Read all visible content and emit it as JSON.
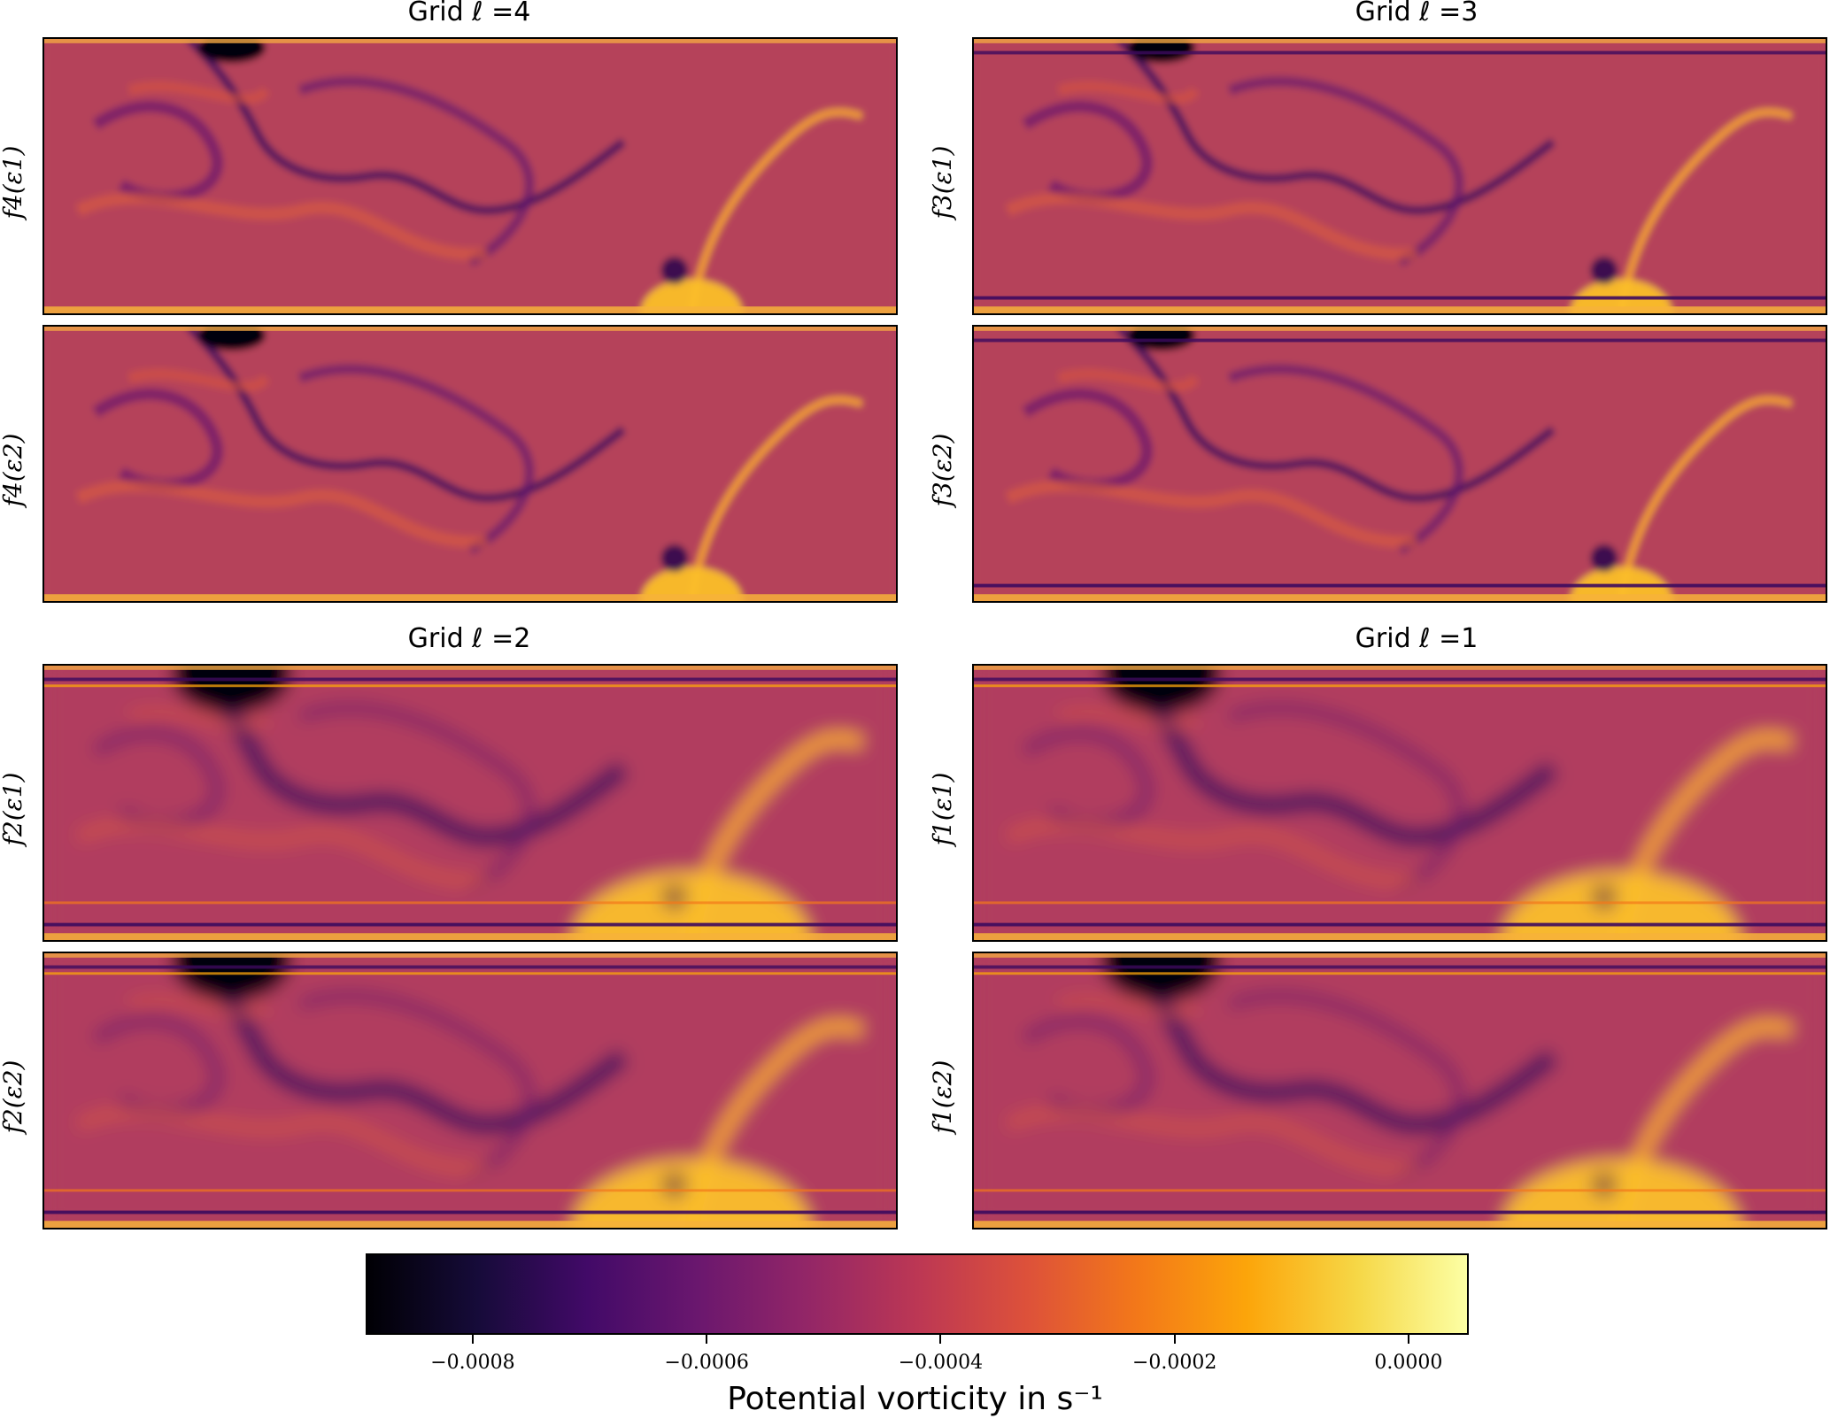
{
  "chart_data": {
    "type": "heatmap",
    "colormap": "inferno",
    "grids": [
      {
        "title": "Grid ℓ =4",
        "rows": [
          {
            "ylabel": "f4(ε1)"
          },
          {
            "ylabel": "f4(ε2)"
          }
        ]
      },
      {
        "title": "Grid ℓ =3",
        "rows": [
          {
            "ylabel": "f3(ε1)"
          },
          {
            "ylabel": "f3(ε2)"
          }
        ]
      },
      {
        "title": "Grid ℓ =2",
        "rows": [
          {
            "ylabel": "f2(ε1)"
          },
          {
            "ylabel": "f2(ε2)"
          }
        ]
      },
      {
        "title": "Grid ℓ =1",
        "rows": [
          {
            "ylabel": "f1(ε1)"
          },
          {
            "ylabel": "f1(ε2)"
          }
        ]
      }
    ],
    "colorbar": {
      "label": "Potential vorticity in s⁻¹",
      "range": [
        -0.00089,
        5e-05
      ],
      "ticks": [
        -0.0008,
        -0.0006,
        -0.0004,
        -0.0002,
        0.0
      ],
      "tick_labels": [
        "−0.0008",
        "−0.0006",
        "−0.0004",
        "−0.0002",
        "0.0000"
      ]
    }
  }
}
